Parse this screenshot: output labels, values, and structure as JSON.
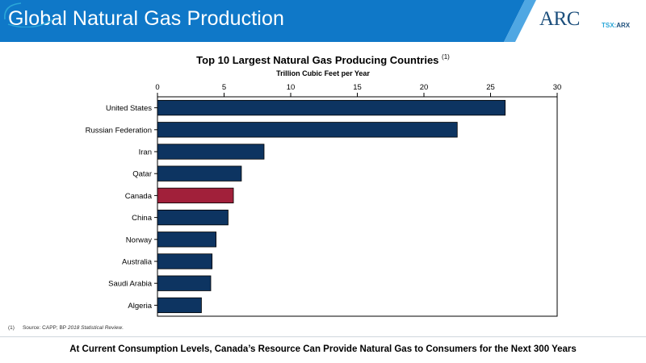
{
  "header": {
    "title": "Global Natural Gas Production"
  },
  "brand": {
    "logo_text": "ARC",
    "ticker_exchange": "TSX:",
    "ticker_symbol": "ARX"
  },
  "colors": {
    "header_blue": "#0f78c8",
    "bar_default": "#0d3461",
    "bar_highlight": "#a1203a"
  },
  "chart_data": {
    "type": "bar",
    "orientation": "horizontal",
    "title": "Top 10 Largest Natural Gas Producing Countries",
    "title_note": "(1)",
    "subtitle": "Trillion Cubic Feet per Year",
    "categories": [
      "United States",
      "Russian Federation",
      "Iran",
      "Qatar",
      "Canada",
      "China",
      "Norway",
      "Australia",
      "Saudi Arabia",
      "Algeria"
    ],
    "values": [
      26.1,
      22.5,
      8.0,
      6.3,
      5.7,
      5.3,
      4.4,
      4.1,
      4.0,
      3.3
    ],
    "highlight": "Canada",
    "xlim": [
      0,
      30
    ],
    "xticks": [
      0,
      5,
      10,
      15,
      20,
      25,
      30
    ],
    "axis_position": "top",
    "grid": false
  },
  "footnote": {
    "number": "(1)",
    "source_prefix": "Source: CAPP; BP ",
    "source_italic": "2018 Statistical Review",
    "source_suffix": "."
  },
  "tagline": "At Current Consumption Levels, Canada’s Resource Can Provide Natural Gas to Consumers for the Next 300 Years"
}
